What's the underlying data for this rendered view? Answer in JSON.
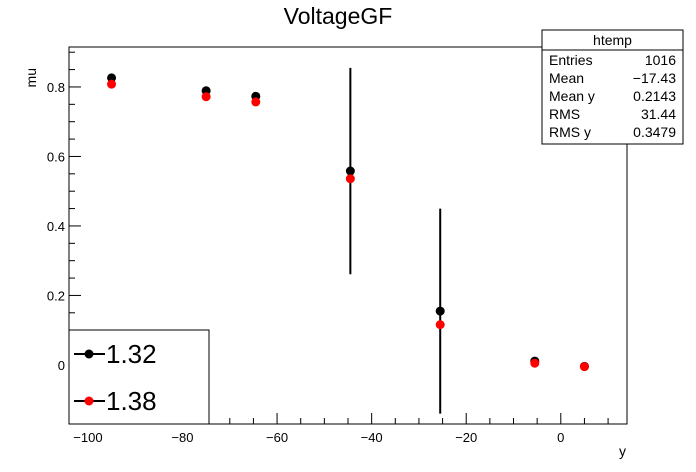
{
  "chart_data": {
    "type": "scatter",
    "title": "VoltageGF",
    "xlabel": "y",
    "ylabel": "mu",
    "xlim": [
      -104,
      14
    ],
    "ylim": [
      -0.17,
      0.915
    ],
    "x_ticks": [
      -100,
      -80,
      -60,
      -40,
      -20,
      0
    ],
    "x_tick_labels": [
      "−100",
      "−80",
      "−60",
      "−40",
      "−20",
      "0"
    ],
    "y_ticks": [
      0,
      0.2,
      0.4,
      0.6,
      0.8
    ],
    "y_tick_labels": [
      "0",
      "0.2",
      "0.4",
      "0.6",
      "0.8"
    ],
    "grid": false,
    "series": [
      {
        "name": "1.32",
        "color": "#000000",
        "points": [
          {
            "x": -95,
            "y": 0.826
          },
          {
            "x": -75,
            "y": 0.789
          },
          {
            "x": -64.5,
            "y": 0.773
          },
          {
            "x": -44.5,
            "y": 0.558,
            "yerr": 0.297
          },
          {
            "x": -25.5,
            "y": 0.155,
            "yerr": 0.295
          },
          {
            "x": -5.5,
            "y": 0.011
          },
          {
            "x": 5,
            "y": -0.004
          }
        ]
      },
      {
        "name": "1.38",
        "color": "#ff0000",
        "points": [
          {
            "x": -95,
            "y": 0.808
          },
          {
            "x": -75,
            "y": 0.772
          },
          {
            "x": -64.5,
            "y": 0.757
          },
          {
            "x": -44.5,
            "y": 0.536
          },
          {
            "x": -25.5,
            "y": 0.116
          },
          {
            "x": -5.5,
            "y": 0.005
          },
          {
            "x": 5,
            "y": -0.005
          }
        ]
      }
    ],
    "legend": {
      "position": "bottom-left",
      "entries": [
        {
          "label": "1.32",
          "color": "#000000"
        },
        {
          "label": "1.38",
          "color": "#ff0000"
        }
      ]
    },
    "stats_box": {
      "position": "top-right",
      "title": "htemp",
      "rows": [
        {
          "label": "Entries",
          "value": "1016"
        },
        {
          "label": "Mean",
          "value": "−17.43"
        },
        {
          "label": "Mean y",
          "value": "0.2143"
        },
        {
          "label": "RMS",
          "value": "31.44"
        },
        {
          "label": "RMS y",
          "value": "0.3479"
        }
      ]
    }
  }
}
